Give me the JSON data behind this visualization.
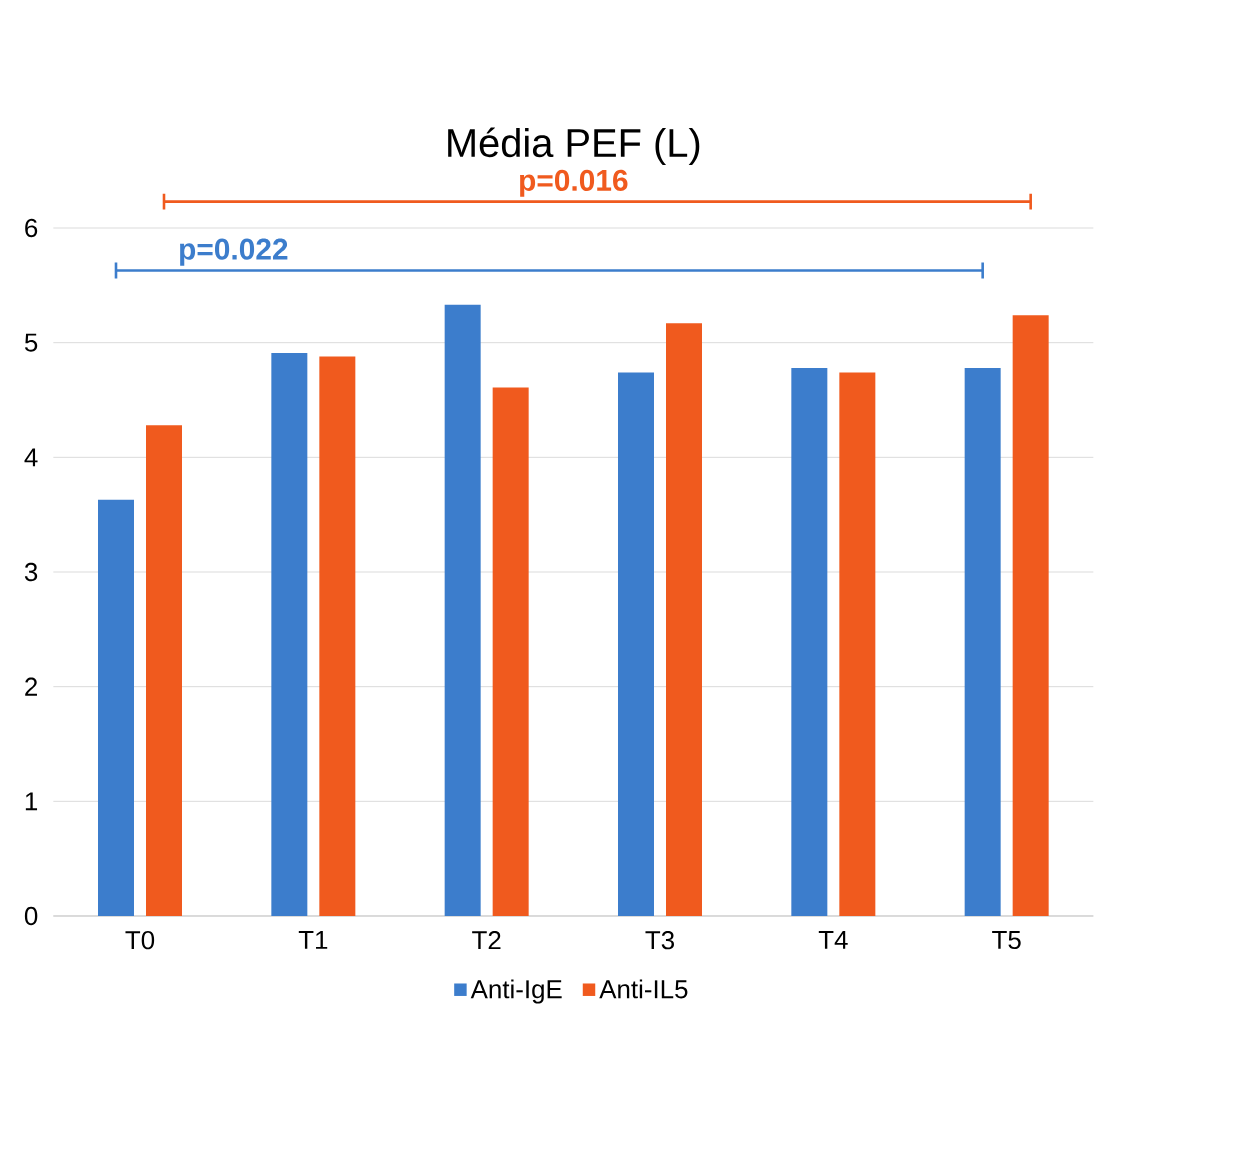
{
  "chart_data": {
    "type": "bar",
    "title": "Média PEF (L)",
    "categories": [
      "T0",
      "T1",
      "T2",
      "T3",
      "T4",
      "T5"
    ],
    "series": [
      {
        "name": "Anti-IgE",
        "color": "#3c7dcc",
        "values": [
          3.63,
          4.91,
          5.33,
          4.74,
          4.78,
          4.78
        ]
      },
      {
        "name": "Anti-IL5",
        "color": "#f05a1e",
        "values": [
          4.28,
          4.88,
          4.61,
          5.17,
          4.74,
          5.24
        ]
      }
    ],
    "ylim": [
      0,
      6
    ],
    "yticks": [
      0,
      1,
      2,
      3,
      4,
      5,
      6
    ],
    "grid": "y",
    "legend": "bottom",
    "annotations": [
      "p=0.016",
      "p=0.022"
    ]
  }
}
